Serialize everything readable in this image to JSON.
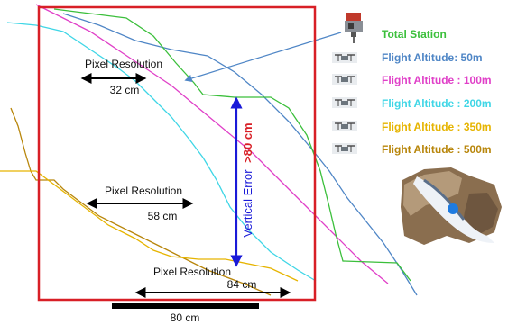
{
  "colors": {
    "frame": "#d81f26",
    "total_station": "#3bbf3b",
    "alt_50": "#4f86c6",
    "alt_100": "#e040c8",
    "alt_200": "#3fd6e6",
    "alt_350": "#e6b400",
    "alt_500": "#b8860b",
    "vertical_error": "#1a1ad8"
  },
  "icons": {
    "total_station": "total-station-icon",
    "drone": "drone-icon",
    "inset": "terrain-photo-icon"
  },
  "legend": [
    {
      "label": "Total Station",
      "color_key": "total_station",
      "icon": "total_station"
    },
    {
      "label": "Flight Altitude: 50m",
      "color_key": "alt_50",
      "icon": "drone"
    },
    {
      "label": "Flight Altitude : 100m",
      "color_key": "alt_100",
      "icon": "drone"
    },
    {
      "label": "Flight Altitude : 200m",
      "color_key": "alt_200",
      "icon": "drone"
    },
    {
      "label": "Flight Altitude : 350m",
      "color_key": "alt_350",
      "icon": "drone"
    },
    {
      "label": "Flight Altitude : 500m",
      "color_key": "alt_500",
      "icon": "drone"
    }
  ],
  "annotations": {
    "pixel_res_1": {
      "title": "Pixel Resolution",
      "value": "32 cm"
    },
    "pixel_res_2": {
      "title": "Pixel Resolution",
      "value": "58 cm"
    },
    "pixel_res_3": {
      "title": "Pixel Resolution",
      "value": "84 cm"
    },
    "vertical_error": {
      "label": "Vertical Error",
      "value": ">80 cm"
    },
    "scale_bar": {
      "label": "80 cm"
    }
  }
}
